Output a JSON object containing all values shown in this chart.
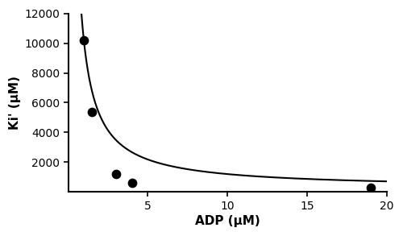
{
  "data_points_x": [
    1.0,
    1.5,
    3.0,
    4.0,
    19.0
  ],
  "data_points_y": [
    10200,
    5400,
    1200,
    600,
    300
  ],
  "xlabel": "ADP (μM)",
  "ylabel": "Ki' (μM)",
  "xlim": [
    0,
    20
  ],
  "ylim": [
    0,
    12000
  ],
  "xticks": [
    5,
    10,
    15,
    20
  ],
  "yticks": [
    2000,
    4000,
    6000,
    8000,
    10000,
    12000
  ],
  "curve_color": "#000000",
  "point_color": "#000000",
  "point_size": 55,
  "linewidth": 1.5,
  "Kii": 220,
  "Km_over_Kii": 9800,
  "figsize": [
    5.0,
    2.93
  ],
  "dpi": 100
}
